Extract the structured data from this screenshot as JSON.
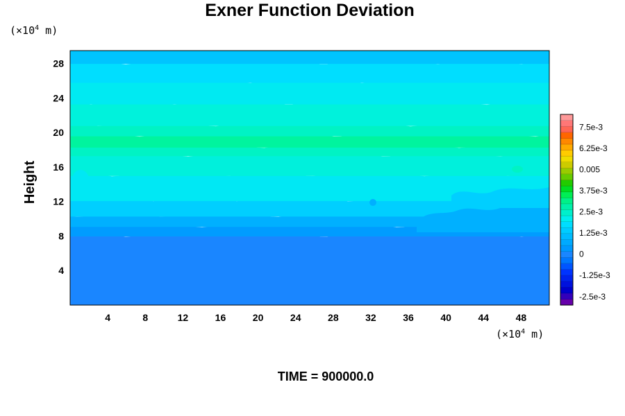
{
  "chart_data": {
    "type": "heatmap",
    "title": "Exner Function Deviation",
    "ylabel": "Height",
    "x_unit": "(×10",
    "x_unit_exp": "4",
    "x_unit_tail": " m)",
    "y_unit": "(×10",
    "y_unit_exp": "4",
    "y_unit_tail": " m)",
    "xlim": [
      0,
      51
    ],
    "ylim": [
      0,
      29.5
    ],
    "x_ticks": [
      4,
      8,
      12,
      16,
      20,
      24,
      28,
      32,
      36,
      40,
      44,
      48
    ],
    "y_ticks": [
      4,
      8,
      12,
      16,
      20,
      24,
      28
    ],
    "bands": [
      {
        "y0": 0,
        "y1": 8.2,
        "color": "#1a86ff"
      },
      {
        "y0": 8.2,
        "y1": 9.3,
        "color": "#009cff"
      },
      {
        "y0": 9.3,
        "y1": 10.5,
        "color": "#00b0ff"
      },
      {
        "y0": 10.5,
        "y1": 12.3,
        "color": "#00cfff"
      },
      {
        "y0": 12.3,
        "y1": 15.2,
        "color": "#00e8f4"
      },
      {
        "y0": 15.2,
        "y1": 17.5,
        "color": "#00f0dc"
      },
      {
        "y0": 17.5,
        "y1": 18.5,
        "color": "#00f3c4"
      },
      {
        "y0": 18.5,
        "y1": 19.8,
        "color": "#00f49e"
      },
      {
        "y0": 19.8,
        "y1": 21.0,
        "color": "#00f3c4"
      },
      {
        "y0": 21.0,
        "y1": 23.5,
        "color": "#00f2dc"
      },
      {
        "y0": 23.5,
        "y1": 26.0,
        "color": "#00eaf2"
      },
      {
        "y0": 26.0,
        "y1": 28.2,
        "color": "#00deff"
      },
      {
        "y0": 28.2,
        "y1": 29.5,
        "color": "#00c4ff"
      }
    ],
    "colorbar": {
      "colors": [
        "#6600aa",
        "#3300bb",
        "#0000cc",
        "#0011dd",
        "#0022ee",
        "#0033ff",
        "#0055ff",
        "#0077ff",
        "#1a86ff",
        "#0099ff",
        "#00aaff",
        "#00bbff",
        "#00ccff",
        "#00ddff",
        "#00eeee",
        "#00f0cc",
        "#00f0aa",
        "#00f088",
        "#00ee55",
        "#00dd22",
        "#22cc00",
        "#66cc00",
        "#99cc00",
        "#cccc00",
        "#eedd00",
        "#ffcc00",
        "#ffaa00",
        "#ff8800",
        "#ff6600",
        "#ff6655",
        "#ff7777",
        "#ff9999"
      ],
      "labels": [
        {
          "text": "7.5e-3",
          "value": 0.0075
        },
        {
          "text": "6.25e-3",
          "value": 0.00625
        },
        {
          "text": "0.005",
          "value": 0.005
        },
        {
          "text": "3.75e-3",
          "value": 0.00375
        },
        {
          "text": "2.5e-3",
          "value": 0.0025
        },
        {
          "text": "1.25e-3",
          "value": 0.00125
        },
        {
          "text": "0",
          "value": 0
        },
        {
          "text": "-1.25e-3",
          "value": -0.00125
        },
        {
          "text": "-2.5e-3",
          "value": -0.0025
        }
      ],
      "min": -0.003,
      "max": 0.00825
    },
    "footer": "TIME = 900000.0"
  }
}
